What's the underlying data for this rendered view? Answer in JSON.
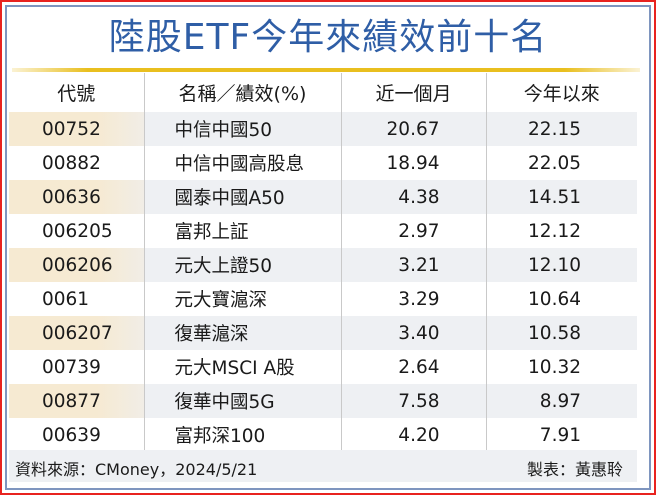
{
  "title": "陸股ETF今年來績效前十名",
  "colors": {
    "title": "#2f5ea6",
    "gold_line": "#e9bf1f",
    "outer_border": "#e8231f",
    "inner_border": "#7e95bf",
    "row_shade": "#eef0f3",
    "code_shade": "#f6ead2"
  },
  "table": {
    "headers": [
      "代號",
      "名稱／績效(%)",
      "近一個月",
      "今年以來"
    ],
    "rows": [
      {
        "code": "00752",
        "name": "中信中國50",
        "month": "20.67",
        "ytd": "22.15"
      },
      {
        "code": "00882",
        "name": "中信中國高股息",
        "month": "18.94",
        "ytd": "22.05"
      },
      {
        "code": "00636",
        "name": "國泰中國A50",
        "month": "4.38",
        "ytd": "14.51"
      },
      {
        "code": "006205",
        "name": "富邦上証",
        "month": "2.97",
        "ytd": "12.12"
      },
      {
        "code": "006206",
        "name": "元大上證50",
        "month": "3.21",
        "ytd": "12.10"
      },
      {
        "code": "0061",
        "name": "元大寶滬深",
        "month": "3.29",
        "ytd": "10.64"
      },
      {
        "code": "006207",
        "name": "復華滬深",
        "month": "3.40",
        "ytd": "10.58"
      },
      {
        "code": "00739",
        "name": "元大MSCI A股",
        "month": "2.64",
        "ytd": "10.32"
      },
      {
        "code": "00877",
        "name": "復華中國5G",
        "month": "7.58",
        "ytd": "8.97"
      },
      {
        "code": "00639",
        "name": "富邦深100",
        "month": "4.20",
        "ytd": "7.91"
      }
    ]
  },
  "footer": {
    "source": "資料來源：CMoney，2024/5/21",
    "maker": "製表：黃惠聆"
  }
}
